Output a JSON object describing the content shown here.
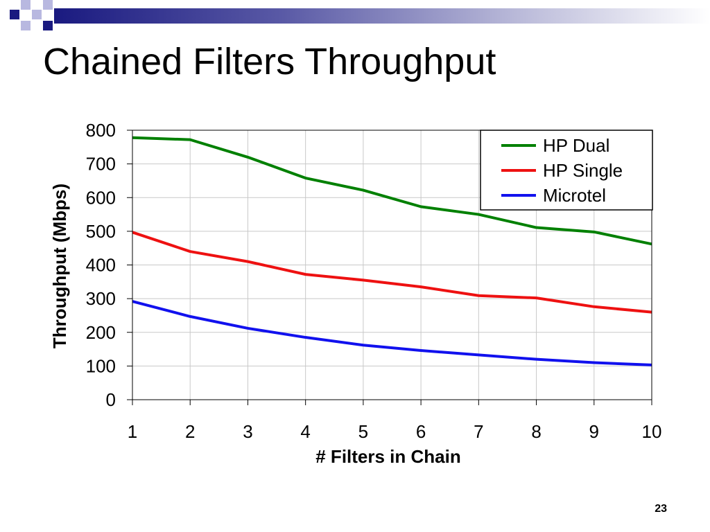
{
  "slide": {
    "title": "Chained Filters Throughput",
    "page_number": "23"
  },
  "chart_data": {
    "type": "line",
    "title": "",
    "xlabel": "# Filters in Chain",
    "ylabel": "Throughput (Mbps)",
    "x": [
      1,
      2,
      3,
      4,
      5,
      6,
      7,
      8,
      9,
      10
    ],
    "xlim": [
      1,
      10
    ],
    "ylim": [
      0,
      800
    ],
    "yticks": [
      0,
      100,
      200,
      300,
      400,
      500,
      600,
      700,
      800
    ],
    "grid": true,
    "legend_position": "top-right",
    "series": [
      {
        "name": "HP Dual",
        "color": "#008000",
        "values": [
          778,
          772,
          720,
          658,
          622,
          573,
          550,
          511,
          498,
          462
        ]
      },
      {
        "name": "HP Single",
        "color": "#ee1111",
        "values": [
          497,
          440,
          410,
          372,
          355,
          335,
          309,
          302,
          276,
          260
        ]
      },
      {
        "name": "Microtel",
        "color": "#1111ee",
        "values": [
          292,
          247,
          212,
          185,
          162,
          146,
          133,
          120,
          110,
          103
        ]
      }
    ]
  }
}
